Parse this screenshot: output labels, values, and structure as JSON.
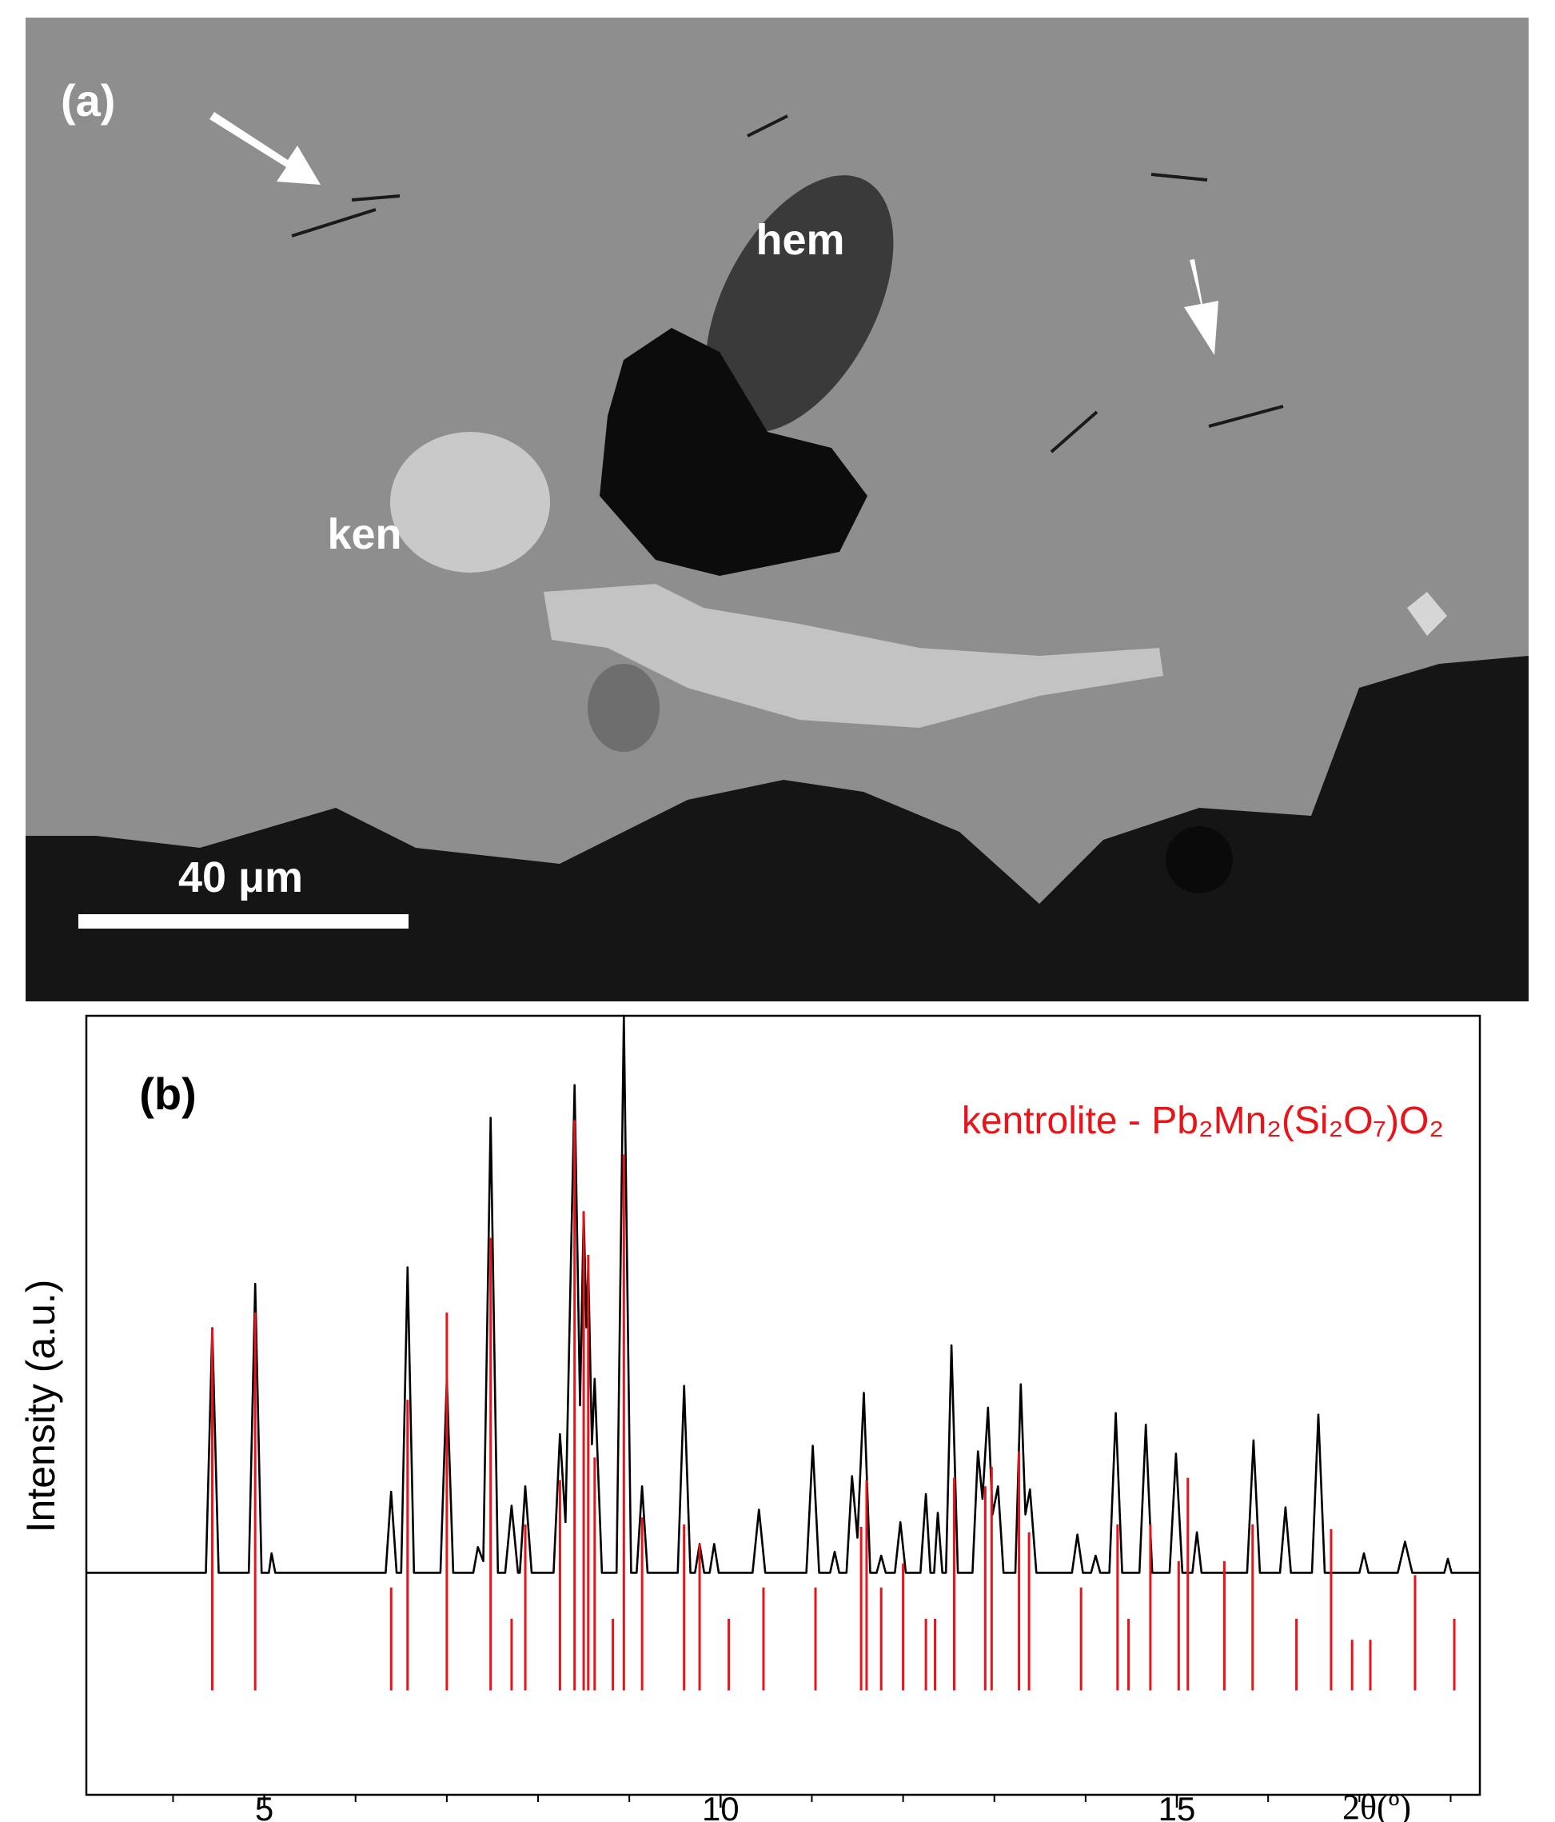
{
  "panel_a": {
    "label": "(a)",
    "annotations": {
      "hem": "hem",
      "ken": "ken"
    },
    "scale_bar_label": "40 μm"
  },
  "chart_data": {
    "type": "line",
    "panel_label": "(b)",
    "ylabel": "Intensity (a.u.)",
    "xlabel": "2θ(º)",
    "xlim": [
      3.05,
      18.32
    ],
    "ylim": [
      0,
      100
    ],
    "xticks": [
      5,
      10,
      15
    ],
    "xticks_minor": [
      4,
      6,
      7,
      8,
      9,
      11,
      12,
      13,
      14,
      16,
      17,
      18
    ],
    "series": [
      {
        "color": "#000000",
        "x": [
          3.05,
          4.36,
          4.43,
          4.5,
          4.83,
          4.9,
          4.97,
          5.05,
          5.08,
          5.12,
          6.33,
          6.39,
          6.45,
          6.5,
          6.57,
          6.64,
          6.93,
          7.0,
          7.07,
          7.29,
          7.34,
          7.4,
          7.48,
          7.56,
          7.64,
          7.71,
          7.78,
          7.8,
          7.86,
          7.93,
          8.17,
          8.24,
          8.3,
          8.4,
          8.46,
          8.5,
          8.53,
          8.55,
          8.59,
          8.62,
          8.7,
          8.86,
          8.94,
          9.02,
          9.08,
          9.14,
          9.2,
          9.53,
          9.6,
          9.67,
          9.72,
          9.77,
          9.82,
          9.88,
          9.93,
          9.98,
          10.35,
          10.42,
          10.49,
          10.94,
          11.01,
          11.08,
          11.2,
          11.25,
          11.3,
          11.38,
          11.44,
          11.5,
          11.57,
          11.64,
          11.71,
          11.76,
          11.81,
          11.91,
          11.97,
          12.03,
          12.19,
          12.25,
          12.3,
          12.34,
          12.38,
          12.43,
          12.47,
          12.53,
          12.6,
          12.76,
          12.82,
          12.87,
          12.93,
          12.98,
          13.04,
          13.1,
          13.23,
          13.29,
          13.34,
          13.39,
          13.46,
          13.85,
          13.91,
          13.97,
          14.06,
          14.11,
          14.16,
          14.26,
          14.33,
          14.4,
          14.59,
          14.66,
          14.73,
          14.92,
          14.99,
          15.06,
          15.17,
          15.22,
          15.27,
          15.77,
          15.84,
          15.91,
          16.13,
          16.19,
          16.25,
          16.48,
          16.55,
          16.62,
          17.0,
          17.05,
          17.1,
          17.42,
          17.5,
          17.58,
          17.93,
          17.97,
          18.01,
          18.32
        ],
        "y": [
          28.5,
          28.5,
          59.9,
          28.5,
          28.5,
          65.6,
          28.5,
          28.5,
          31,
          28.5,
          28.5,
          38.9,
          28.5,
          28.5,
          67.7,
          28.5,
          28.5,
          53.4,
          28.5,
          28.5,
          31.8,
          30,
          86.9,
          28.5,
          28.5,
          37.1,
          28.5,
          28.5,
          39.6,
          28.5,
          28.5,
          46.3,
          35,
          91.1,
          50,
          74.8,
          60,
          67.8,
          45,
          53.4,
          28.5,
          28.5,
          100,
          28.5,
          28.5,
          39.6,
          28.5,
          28.5,
          52.5,
          28.5,
          28.5,
          32.2,
          28.5,
          28.5,
          32.2,
          28.5,
          28.5,
          36.6,
          28.5,
          28.5,
          44.8,
          28.5,
          28.5,
          31.2,
          28.5,
          28.5,
          40.9,
          33,
          51.6,
          28.5,
          28.5,
          30.7,
          28.5,
          28.5,
          35.0,
          28.5,
          28.5,
          38.6,
          28.5,
          28.5,
          36.2,
          28.5,
          28.5,
          57.7,
          28.5,
          28.5,
          44.1,
          38,
          49.7,
          36,
          39.6,
          28.5,
          28.5,
          52.7,
          36,
          39.2,
          28.5,
          28.5,
          33.4,
          28.5,
          28.5,
          30.7,
          28.5,
          28.5,
          49.0,
          28.5,
          28.5,
          47.5,
          28.5,
          28.5,
          43.8,
          28.5,
          28.5,
          33.7,
          28.5,
          28.5,
          45.5,
          28.5,
          28.5,
          36.9,
          28.5,
          28.5,
          48.8,
          28.5,
          28.5,
          31.0,
          28.5,
          28.5,
          32.5,
          28.5,
          28.5,
          30.3,
          28.5,
          28.5
        ]
      },
      {
        "type": "stick",
        "name": "kentrolite - Pb₂Mn₂(Si₂O₇)O₂",
        "color": "#e8141a",
        "base": 13.4,
        "x": [
          4.43,
          4.9,
          6.39,
          6.57,
          7.0,
          7.48,
          7.71,
          7.86,
          8.24,
          8.4,
          8.5,
          8.55,
          8.62,
          8.82,
          8.94,
          9.14,
          9.6,
          9.77,
          10.09,
          10.47,
          11.04,
          11.54,
          11.6,
          11.76,
          12.0,
          12.25,
          12.35,
          12.56,
          12.9,
          12.97,
          13.27,
          13.38,
          13.95,
          14.35,
          14.47,
          14.71,
          15.02,
          15.12,
          15.52,
          15.83,
          16.31,
          16.69,
          16.92,
          17.12,
          17.61,
          18.04
        ],
        "values": [
          59.9,
          61.9,
          26.6,
          50.7,
          61.9,
          71.5,
          22.6,
          34.7,
          40.4,
          86.6,
          74.9,
          69.3,
          43.3,
          22.6,
          82.2,
          35.6,
          34.7,
          32.2,
          22.6,
          26.6,
          26.6,
          34.4,
          40.4,
          26.6,
          29.7,
          22.6,
          22.6,
          40.7,
          39.6,
          42.1,
          44.1,
          33.7,
          26.6,
          34.7,
          22.6,
          34.7,
          30.0,
          40.7,
          30.0,
          34.7,
          22.6,
          34.1,
          19.9,
          19.9,
          28.2,
          22.6
        ]
      }
    ]
  }
}
